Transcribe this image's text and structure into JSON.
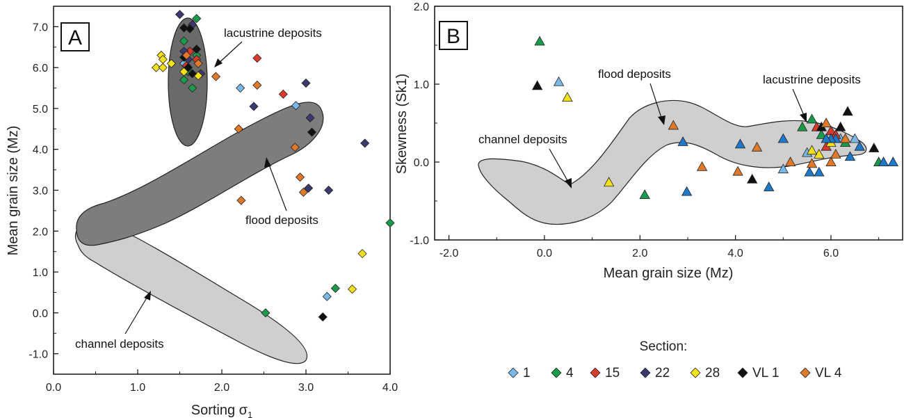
{
  "colors": {
    "1": "#7ab8e8",
    "4": "#1a9a4a",
    "15": "#d93a2b",
    "22": "#3a3a6e",
    "28": "#f5e11a",
    "VL 1": "#111111",
    "VL 4": "#e07a2a",
    "triangle_blue": "#1f78c8"
  },
  "legend": {
    "title": "Section:",
    "items": [
      {
        "label": "1",
        "key": "1"
      },
      {
        "label": "4",
        "key": "4"
      },
      {
        "label": "15",
        "key": "15"
      },
      {
        "label": "22",
        "key": "22"
      },
      {
        "label": "28",
        "key": "28"
      },
      {
        "label": "VL 1",
        "key": "VL 1"
      },
      {
        "label": "VL 4",
        "key": "VL 4"
      }
    ]
  },
  "chart_data": [
    {
      "type": "scatter",
      "panel": "A",
      "xlabel": "Sorting σ",
      "xlabel_sub": "1",
      "ylabel": "Mean grain size (Mz)",
      "xlim": [
        0,
        4
      ],
      "ylim": [
        -1.5,
        7.5
      ],
      "xticks": [
        "0.0",
        "1.0",
        "2.0",
        "3.0",
        "4.0"
      ],
      "yticks": [
        "-1.0",
        "0.0",
        "1.0",
        "2.0",
        "3.0",
        "4.0",
        "5.0",
        "6.0",
        "7.0"
      ],
      "annotations": [
        "lacustrine deposits",
        "flood deposits",
        "channel deposits"
      ],
      "series": [
        {
          "name": "1",
          "marker": "diamond",
          "points": [
            [
              2.22,
              5.5
            ],
            [
              2.88,
              5.07
            ],
            [
              3.25,
              0.4
            ],
            [
              1.55,
              6.1
            ],
            [
              1.6,
              5.9
            ]
          ]
        },
        {
          "name": "4",
          "marker": "diamond",
          "points": [
            [
              1.7,
              7.2
            ],
            [
              1.55,
              6.65
            ],
            [
              1.6,
              5.9
            ],
            [
              1.55,
              5.7
            ],
            [
              1.65,
              5.5
            ],
            [
              4.0,
              2.2
            ],
            [
              3.35,
              0.6
            ],
            [
              2.52,
              0.0
            ],
            [
              1.7,
              6.3
            ]
          ]
        },
        {
          "name": "15",
          "marker": "diamond",
          "points": [
            [
              2.42,
              6.23
            ],
            [
              2.73,
              5.35
            ],
            [
              1.58,
              6.05
            ],
            [
              1.7,
              6.2
            ],
            [
              1.62,
              6.4
            ]
          ]
        },
        {
          "name": "22",
          "marker": "diamond",
          "points": [
            [
              1.5,
              7.3
            ],
            [
              1.65,
              7.05
            ],
            [
              2.38,
              5.05
            ],
            [
              3.0,
              5.62
            ],
            [
              3.05,
              4.77
            ],
            [
              3.7,
              4.15
            ],
            [
              3.03,
              3.05
            ],
            [
              3.27,
              3.0
            ],
            [
              1.55,
              6.4
            ],
            [
              1.75,
              5.85
            ],
            [
              1.6,
              6.2
            ]
          ]
        },
        {
          "name": "28",
          "marker": "diamond",
          "points": [
            [
              1.22,
              6.0
            ],
            [
              1.3,
              6.0
            ],
            [
              1.28,
              6.3
            ],
            [
              1.3,
              6.2
            ],
            [
              1.4,
              6.1
            ],
            [
              1.55,
              5.9
            ],
            [
              1.72,
              5.8
            ],
            [
              3.67,
              1.45
            ],
            [
              3.55,
              0.58
            ]
          ]
        },
        {
          "name": "VL 1",
          "marker": "diamond",
          "points": [
            [
              1.55,
              6.97
            ],
            [
              1.62,
              6.95
            ],
            [
              1.55,
              6.25
            ],
            [
              1.7,
              6.45
            ],
            [
              1.65,
              5.85
            ],
            [
              3.07,
              4.42
            ],
            [
              3.2,
              -0.1
            ],
            [
              1.6,
              6.0
            ]
          ]
        },
        {
          "name": "VL 4",
          "marker": "diamond",
          "points": [
            [
              1.93,
              5.78
            ],
            [
              2.42,
              5.57
            ],
            [
              2.2,
              4.5
            ],
            [
              2.87,
              4.05
            ],
            [
              2.93,
              3.32
            ],
            [
              2.97,
              2.95
            ],
            [
              2.23,
              2.75
            ],
            [
              1.72,
              6.1
            ],
            [
              1.58,
              6.3
            ]
          ]
        }
      ]
    },
    {
      "type": "scatter",
      "panel": "B",
      "xlabel": "Mean grain size (Mz)",
      "ylabel": "Skewness (Sk1)",
      "xlim": [
        -2.3,
        7.5
      ],
      "ylim": [
        -1.0,
        2.0
      ],
      "xticks": [
        "-2.0",
        "0.0",
        "2.0",
        "4.0",
        "6.0"
      ],
      "yticks": [
        "-1.0",
        "0.0",
        "1.0",
        "2.0"
      ],
      "annotations": [
        "lacustrine deposits",
        "flood deposits",
        "channel deposits"
      ],
      "series": [
        {
          "name": "1",
          "marker": "triangle",
          "points": [
            [
              0.3,
              1.03
            ],
            [
              6.5,
              0.3
            ],
            [
              5.5,
              0.12
            ],
            [
              6.2,
              0.3
            ],
            [
              5.0,
              -0.09
            ]
          ]
        },
        {
          "name": "4",
          "marker": "triangle",
          "points": [
            [
              -0.1,
              1.55
            ],
            [
              2.1,
              -0.42
            ],
            [
              5.6,
              0.55
            ],
            [
              5.4,
              0.45
            ],
            [
              6.3,
              0.25
            ],
            [
              7.0,
              0.0
            ],
            [
              5.8,
              0.35
            ]
          ]
        },
        {
          "name": "15",
          "marker": "triangle",
          "points": [
            [
              5.7,
              0.45
            ],
            [
              6.0,
              0.4
            ],
            [
              5.9,
              0.2
            ],
            [
              6.1,
              0.35
            ]
          ]
        },
        {
          "name": "28",
          "marker": "triangle",
          "points": [
            [
              0.48,
              0.83
            ],
            [
              1.35,
              -0.26
            ],
            [
              5.75,
              0.1
            ],
            [
              6.0,
              0.25
            ],
            [
              5.6,
              0.15
            ]
          ]
        },
        {
          "name": "VL 1",
          "marker": "triangle",
          "points": [
            [
              -0.15,
              0.98
            ],
            [
              4.35,
              -0.22
            ],
            [
              6.35,
              0.65
            ],
            [
              6.9,
              0.18
            ],
            [
              6.2,
              0.45
            ],
            [
              5.8,
              0.45
            ]
          ]
        },
        {
          "name": "VL 4",
          "marker": "triangle",
          "points": [
            [
              2.7,
              0.47
            ],
            [
              3.3,
              -0.06
            ],
            [
              4.05,
              -0.12
            ],
            [
              4.45,
              0.19
            ],
            [
              5.15,
              0.0
            ],
            [
              5.6,
              -0.02
            ],
            [
              6.0,
              0.0
            ],
            [
              6.3,
              0.3
            ],
            [
              5.9,
              0.5
            ],
            [
              6.1,
              0.1
            ]
          ]
        },
        {
          "name": "blue",
          "marker": "triangle",
          "points": [
            [
              2.9,
              0.26
            ],
            [
              2.98,
              -0.38
            ],
            [
              4.1,
              0.23
            ],
            [
              4.7,
              -0.32
            ],
            [
              5.0,
              0.3
            ],
            [
              5.55,
              -0.13
            ],
            [
              5.75,
              -0.13
            ],
            [
              6.1,
              0.3
            ],
            [
              6.4,
              0.07
            ],
            [
              6.6,
              0.2
            ],
            [
              7.1,
              0.0
            ],
            [
              7.3,
              0.0
            ],
            [
              6.0,
              0.3
            ],
            [
              5.9,
              0.3
            ]
          ]
        }
      ]
    }
  ]
}
